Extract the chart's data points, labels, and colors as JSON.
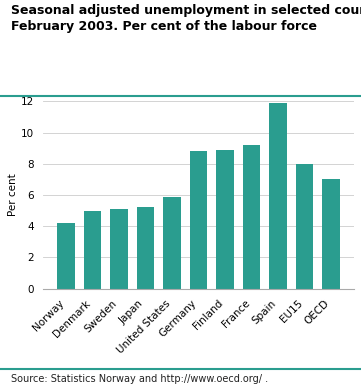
{
  "title_line1": "Seasonal adjusted unemployment in selected countries,",
  "title_line2": "February 2003. Per cent of the labour force",
  "ylabel": "Per cent",
  "source": "Source: Statistics Norway and http://www.oecd.org/ .",
  "categories": [
    "Norway",
    "Denmark",
    "Sweden",
    "Japan",
    "United States",
    "Germany",
    "Finland",
    "France",
    "Spain",
    "EU15",
    "OECD"
  ],
  "values": [
    4.2,
    5.0,
    5.1,
    5.2,
    5.9,
    8.8,
    8.9,
    9.2,
    11.9,
    8.0,
    7.0
  ],
  "bar_color": "#2a9d8f",
  "background_color": "#ffffff",
  "ylim": [
    0,
    12
  ],
  "yticks": [
    0,
    2,
    4,
    6,
    8,
    10,
    12
  ],
  "grid_color": "#cccccc",
  "teal_line_color": "#2a9d8f",
  "title_fontsize": 9.0,
  "ylabel_fontsize": 7.5,
  "tick_fontsize": 7.5,
  "source_fontsize": 7.0
}
